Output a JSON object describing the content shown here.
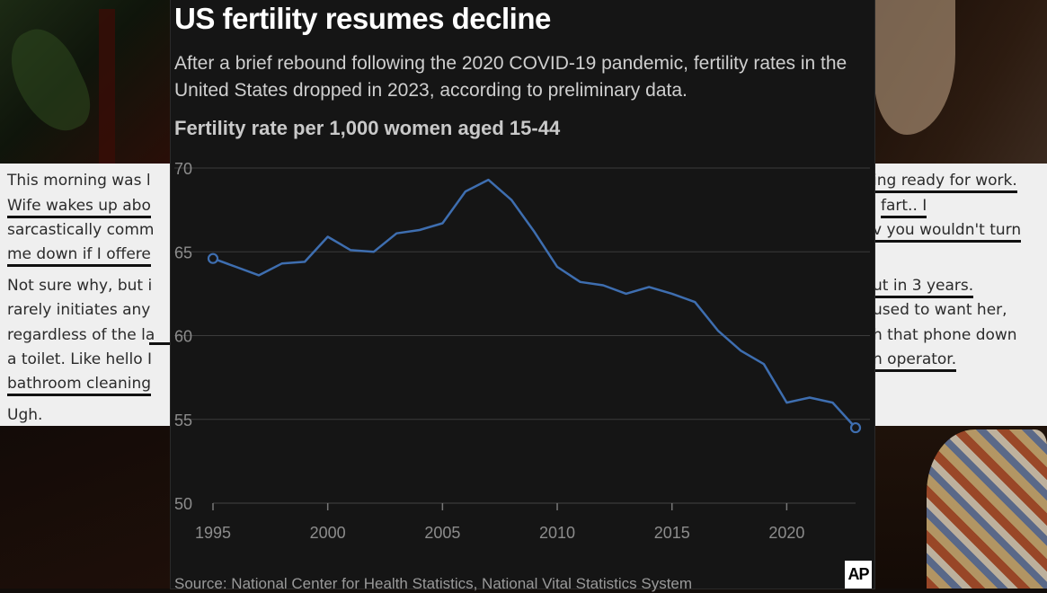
{
  "article": {
    "headline": "US fertility resumes decline",
    "subtitle": "After a brief rebound following the 2020 COVID-19 pandemic, fertility rates in the United States dropped in 2023, according to preliminary data.",
    "source": "Source: National Center for Health Statistics, National Vital Statistics System",
    "logo_text": "AP"
  },
  "colors": {
    "line": "#3e6eb0",
    "grid": "#3b3b3b",
    "axis_text": "#8c8c8c",
    "background": "#151515"
  },
  "left_post": {
    "lines": [
      "This morning was l",
      "Wife wakes up abo",
      "sarcastically comm",
      "me down if I offere",
      "Not sure why, but i",
      "rarely initiates any",
      "regardless of the la",
      "a toilet. Like hello I",
      "bathroom cleaning",
      "Ugh."
    ]
  },
  "right_post": {
    "lines": [
      "ing ready for work.",
      "fart.. I",
      "v you wouldn't turn",
      "ut in 3 years.",
      "used to want her,",
      "h that phone down",
      "n operator."
    ]
  },
  "chart_data": {
    "type": "line",
    "title": "US fertility resumes decline",
    "ylabel": "Fertility rate per 1,000 women aged 15-44",
    "xlim": [
      1995,
      2023
    ],
    "ylim": [
      50,
      70
    ],
    "x_ticks": [
      1995,
      2000,
      2005,
      2010,
      2015,
      2020
    ],
    "y_ticks": [
      50,
      55,
      60,
      65,
      70
    ],
    "grid": true,
    "series": [
      {
        "x": [
          1995,
          1996,
          1997,
          1998,
          1999,
          2000,
          2001,
          2002,
          2003,
          2004,
          2005,
          2006,
          2007,
          2008,
          2009,
          2010,
          2011,
          2012,
          2013,
          2014,
          2015,
          2016,
          2017,
          2018,
          2019,
          2020,
          2021,
          2022,
          2023
        ],
        "values": [
          64.6,
          64.1,
          63.6,
          64.3,
          64.4,
          65.9,
          65.1,
          65.0,
          66.1,
          66.3,
          66.7,
          68.6,
          69.3,
          68.1,
          66.2,
          64.1,
          63.2,
          63.0,
          62.5,
          62.9,
          62.5,
          62.0,
          60.3,
          59.1,
          58.3,
          56.0,
          56.3,
          56.0,
          54.5
        ]
      }
    ],
    "endpoint_markers": true
  }
}
